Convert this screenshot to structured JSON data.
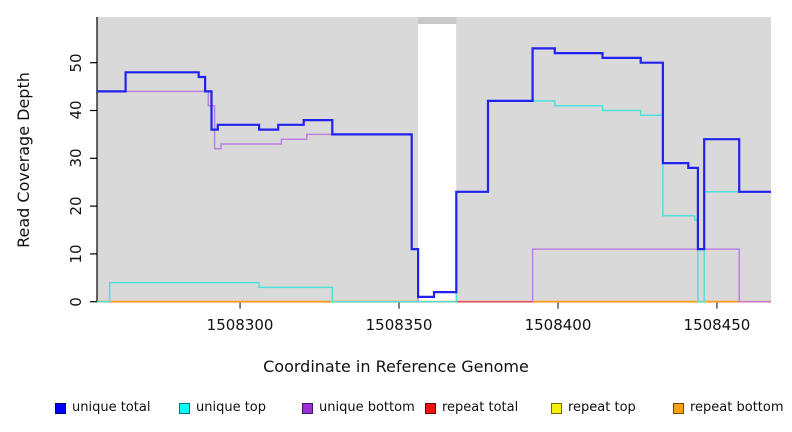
{
  "chart_data": {
    "type": "line",
    "step_mode": "step-after",
    "title": "",
    "xlabel": "Coordinate in Reference Genome",
    "ylabel": "Read Coverage Depth",
    "x_ticks": [
      "1508300",
      "1508350",
      "1508400",
      "1508450"
    ],
    "x_tick_values": [
      1508300,
      1508350,
      1508400,
      1508450
    ],
    "y_ticks": [
      "0",
      "10",
      "20",
      "30",
      "40",
      "50"
    ],
    "y_tick_values": [
      0,
      10,
      20,
      30,
      40,
      50
    ],
    "x_range": [
      1508255,
      1508467
    ],
    "y_range": [
      0,
      59.5
    ],
    "panel_color": "#d9d9d9",
    "no_data_gap": {
      "from": 1508356,
      "to": 1508368
    },
    "legend_position": "bottom",
    "series": [
      {
        "name": "unique total",
        "line_color": "#2121f0",
        "legend_color": "#0000ff",
        "steps": [
          [
            1508255,
            44
          ],
          [
            1508264,
            48
          ],
          [
            1508287,
            47
          ],
          [
            1508289,
            44
          ],
          [
            1508291,
            36
          ],
          [
            1508293,
            37
          ],
          [
            1508306,
            36
          ],
          [
            1508312,
            37
          ],
          [
            1508320,
            38
          ],
          [
            1508329,
            35
          ],
          [
            1508354,
            11
          ],
          [
            1508356,
            1
          ],
          [
            1508361,
            2
          ],
          [
            1508368,
            23
          ],
          [
            1508378,
            42
          ],
          [
            1508392,
            53
          ],
          [
            1508399,
            52
          ],
          [
            1508414,
            51
          ],
          [
            1508426,
            50
          ],
          [
            1508433,
            29
          ],
          [
            1508441,
            28
          ],
          [
            1508444,
            11
          ],
          [
            1508446,
            34
          ],
          [
            1508457,
            23
          ]
        ]
      },
      {
        "name": "unique top",
        "line_color": "#4fe0da",
        "legend_color": "#00ffff",
        "steps": [
          [
            1508255,
            0
          ],
          [
            1508259,
            4
          ],
          [
            1508306,
            3
          ],
          [
            1508329,
            0
          ],
          [
            1508368,
            23
          ],
          [
            1508378,
            42
          ],
          [
            1508399,
            41
          ],
          [
            1508414,
            40
          ],
          [
            1508426,
            39
          ],
          [
            1508433,
            18
          ],
          [
            1508443,
            17
          ],
          [
            1508444,
            0
          ],
          [
            1508446,
            23
          ]
        ]
      },
      {
        "name": "unique bottom",
        "line_color": "#bc80e2",
        "legend_color": "#9b30d9",
        "steps": [
          [
            1508255,
            44
          ],
          [
            1508290,
            41
          ],
          [
            1508292,
            32
          ],
          [
            1508294,
            33
          ],
          [
            1508313,
            34
          ],
          [
            1508321,
            35
          ],
          [
            1508354,
            11
          ],
          [
            1508356,
            0
          ],
          [
            1508392,
            11
          ],
          [
            1508457,
            0
          ]
        ]
      },
      {
        "name": "repeat total",
        "line_color": "#e03050",
        "legend_color": "#ee1111",
        "steps": [
          [
            1508255,
            0
          ]
        ]
      },
      {
        "name": "repeat top",
        "line_color": "#f0e840",
        "legend_color": "#f6ef0f",
        "steps": [
          [
            1508255,
            0
          ]
        ]
      },
      {
        "name": "repeat bottom",
        "line_color": "#ff9d1e",
        "legend_color": "#ffa010",
        "steps": [
          [
            1508255,
            0
          ]
        ]
      }
    ],
    "baseline_overlaps": [
      {
        "from": 1508255,
        "to": 1508259,
        "color": "#8cc98c"
      },
      {
        "from": 1508329,
        "to": 1508356,
        "color": "#8cc98c"
      },
      {
        "from": 1508368,
        "to": 1508392,
        "color": "#d85575"
      }
    ]
  }
}
